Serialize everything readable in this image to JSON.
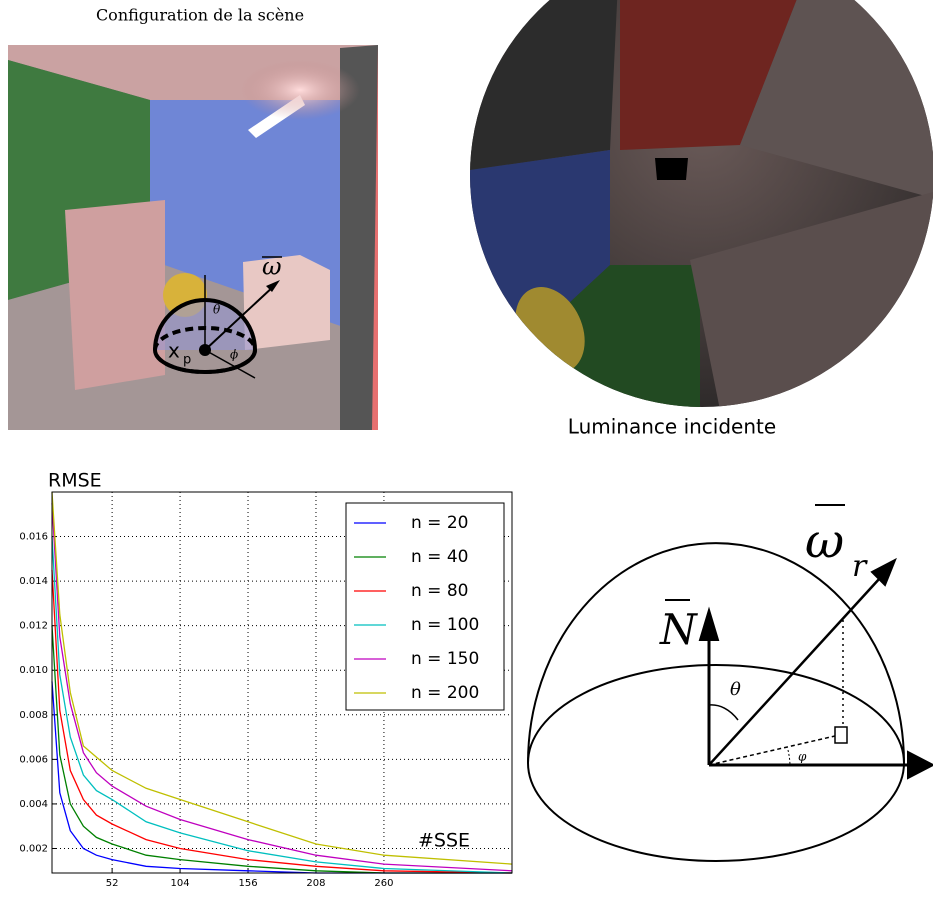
{
  "scene": {
    "title": "Configuration de la scène",
    "labels": {
      "point": "x",
      "point_sub": "p",
      "theta": "θ",
      "phi": "ϕ",
      "direction": "ω"
    }
  },
  "fisheye": {
    "caption": "Luminance incidente"
  },
  "chart_data": {
    "type": "line",
    "y_label": "RMSE",
    "annotation": "#SSE",
    "x": [
      6,
      12,
      20,
      30,
      40,
      52,
      78,
      104,
      156,
      208,
      260,
      358
    ],
    "series": [
      {
        "name": "n = 20",
        "color": "#0000ff",
        "values": [
          0.0095,
          0.0045,
          0.0028,
          0.002,
          0.0017,
          0.0015,
          0.0012,
          0.0011,
          0.001,
          0.0009,
          0.0009,
          0.0009
        ]
      },
      {
        "name": "n = 40",
        "color": "#008000",
        "values": [
          0.012,
          0.0062,
          0.004,
          0.003,
          0.0025,
          0.0022,
          0.0017,
          0.0015,
          0.0012,
          0.001,
          0.0009,
          0.0009
        ]
      },
      {
        "name": "n = 80",
        "color": "#ff0000",
        "values": [
          0.0145,
          0.0082,
          0.0055,
          0.0042,
          0.0035,
          0.0031,
          0.0024,
          0.002,
          0.0015,
          0.0012,
          0.001,
          0.0009
        ]
      },
      {
        "name": "n = 100",
        "color": "#00bfbf",
        "values": [
          0.016,
          0.0098,
          0.007,
          0.0053,
          0.0046,
          0.0042,
          0.0032,
          0.0027,
          0.0019,
          0.0014,
          0.0011,
          0.0009
        ]
      },
      {
        "name": "n = 150",
        "color": "#bf00bf",
        "values": [
          0.0175,
          0.0115,
          0.0085,
          0.0063,
          0.0054,
          0.0048,
          0.0039,
          0.0033,
          0.0024,
          0.0017,
          0.0013,
          0.001
        ]
      },
      {
        "name": "n = 200",
        "color": "#bfbf00",
        "values": [
          0.018,
          0.0125,
          0.009,
          0.0066,
          0.0061,
          0.0055,
          0.0047,
          0.0042,
          0.0032,
          0.0022,
          0.0017,
          0.0013
        ]
      }
    ],
    "xlim": [
      6,
      358
    ],
    "ylim": [
      0.0009,
      0.018
    ],
    "xticks": [
      52,
      104,
      156,
      208,
      260
    ],
    "yticks": [
      0.002,
      0.004,
      0.006,
      0.008,
      {
        "value": 0.01,
        "label": "0.010"
      },
      0.012,
      0.014,
      0.016
    ],
    "grid": true,
    "legend": "upper right"
  },
  "diagram": {
    "labels": {
      "normal": "N",
      "direction": "ω",
      "direction_sub": "r",
      "theta": "θ",
      "phi": "φ"
    }
  }
}
